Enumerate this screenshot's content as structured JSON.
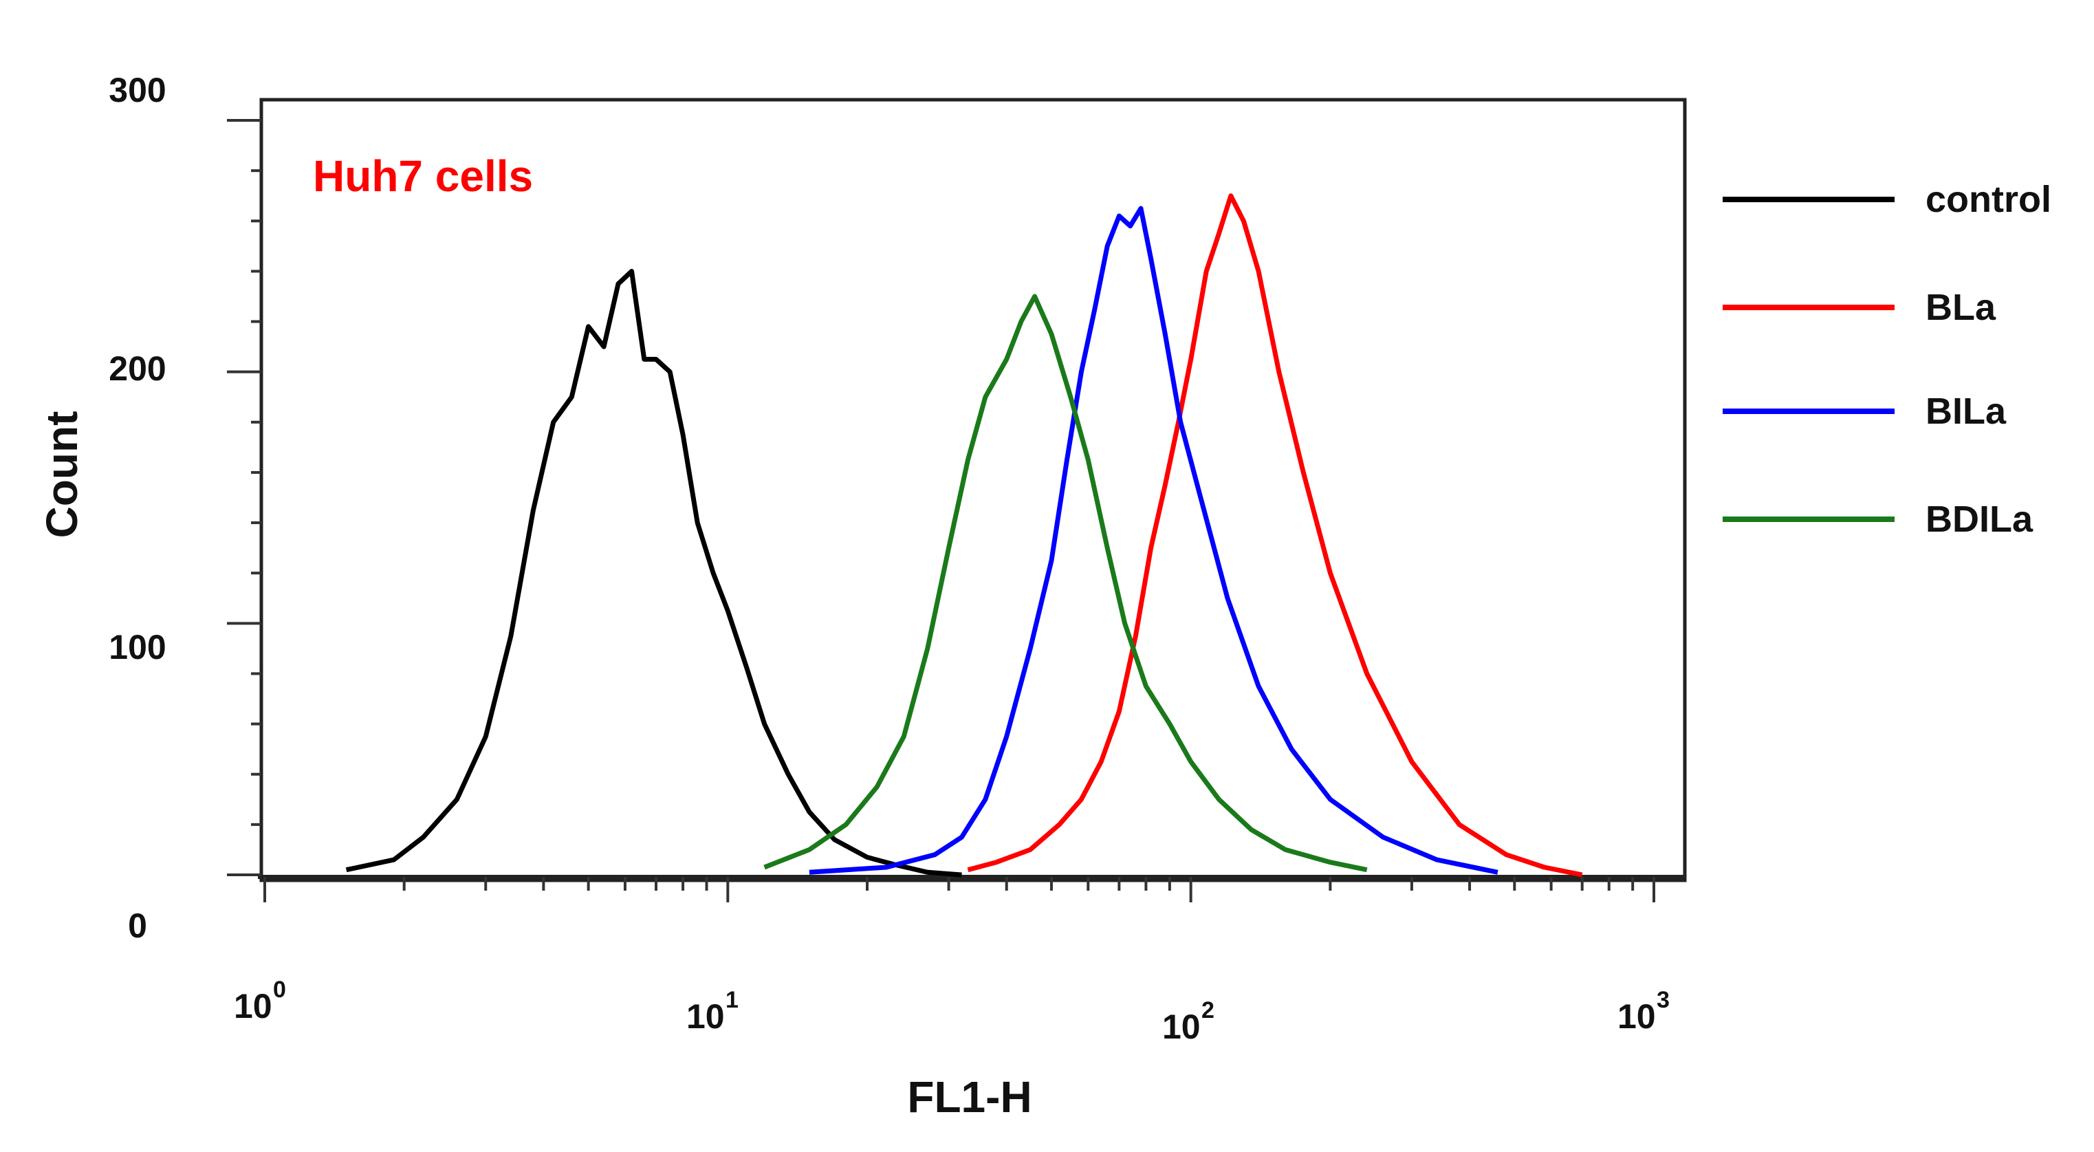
{
  "chart_data": {
    "type": "line",
    "title": "",
    "annotation": "Huh7 cells",
    "annotation_color": "#ff0000",
    "xlabel": "FL1-H",
    "ylabel": "Count",
    "xscale": "log",
    "xlim": [
      1,
      1000
    ],
    "ylim": [
      0,
      300
    ],
    "yticks": [
      "0",
      "100",
      "200",
      "300"
    ],
    "xticks": [
      {
        "base": "10",
        "exp": "0"
      },
      {
        "base": "10",
        "exp": "1"
      },
      {
        "base": "10",
        "exp": "2"
      },
      {
        "base": "10",
        "exp": "3"
      }
    ],
    "legend_position": "right",
    "series": [
      {
        "name": "control",
        "color": "#000000",
        "x": [
          1.5,
          1.9,
          2.2,
          2.6,
          3.0,
          3.4,
          3.8,
          4.2,
          4.6,
          5.0,
          5.4,
          5.8,
          6.2,
          6.6,
          7.0,
          7.5,
          8.0,
          8.6,
          9.3,
          10.0,
          11.0,
          12.0,
          13.5,
          15.0,
          17.0,
          20.0,
          23.0,
          27.0,
          32.0
        ],
        "y": [
          2,
          6,
          15,
          30,
          55,
          95,
          145,
          180,
          190,
          218,
          210,
          235,
          240,
          205,
          205,
          200,
          175,
          140,
          120,
          105,
          82,
          60,
          40,
          25,
          14,
          7,
          4,
          1,
          0
        ]
      },
      {
        "name": "BLa",
        "color": "#ff0000",
        "x": [
          33,
          38,
          45,
          52,
          58,
          64,
          70,
          76,
          82,
          88,
          94,
          100,
          108,
          115,
          122,
          130,
          140,
          155,
          175,
          200,
          240,
          300,
          380,
          480,
          580,
          700
        ],
        "y": [
          2,
          5,
          10,
          20,
          30,
          45,
          65,
          95,
          130,
          155,
          180,
          205,
          240,
          255,
          270,
          260,
          240,
          200,
          160,
          120,
          80,
          45,
          20,
          8,
          3,
          0
        ]
      },
      {
        "name": "BILa",
        "color": "#0000ff",
        "x": [
          15,
          22,
          28,
          32,
          36,
          40,
          45,
          50,
          54,
          58,
          62,
          66,
          70,
          74,
          78,
          82,
          88,
          95,
          105,
          120,
          140,
          165,
          200,
          260,
          340,
          460
        ],
        "y": [
          1,
          3,
          8,
          15,
          30,
          55,
          90,
          125,
          165,
          200,
          225,
          250,
          262,
          258,
          265,
          245,
          215,
          180,
          150,
          110,
          75,
          50,
          30,
          15,
          6,
          1
        ]
      },
      {
        "name": "BDILa",
        "color": "#1a7a1a",
        "x": [
          12,
          15,
          18,
          21,
          24,
          27,
          30,
          33,
          36,
          40,
          43,
          46,
          50,
          55,
          60,
          66,
          72,
          80,
          90,
          100,
          115,
          135,
          160,
          200,
          240
        ],
        "y": [
          3,
          10,
          20,
          35,
          55,
          90,
          130,
          165,
          190,
          205,
          220,
          230,
          215,
          190,
          165,
          130,
          100,
          75,
          60,
          45,
          30,
          18,
          10,
          5,
          2
        ]
      }
    ]
  }
}
